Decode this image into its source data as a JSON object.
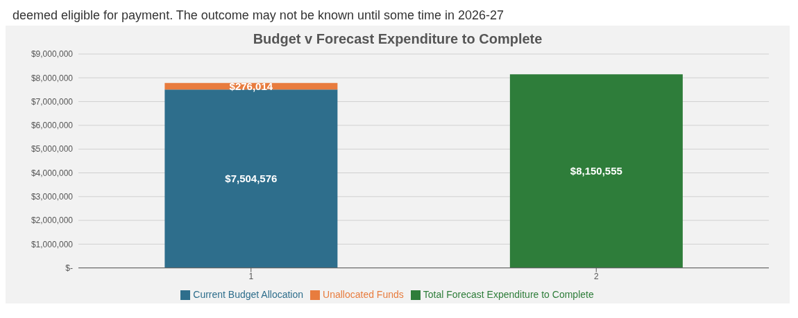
{
  "chart_data": {
    "type": "bar",
    "title": "Budget v Forecast Expenditure to Complete",
    "annotations": [
      "deemed eligible for payment. The outcome may not be known until some time in 2026-27"
    ],
    "categories": [
      "1",
      "2"
    ],
    "stacked": true,
    "series": [
      {
        "name": "Current Budget Allocation",
        "color": "#2e6e8c",
        "values": [
          7504576,
          null
        ],
        "value_labels": [
          "$7,504,576",
          null
        ]
      },
      {
        "name": "Unallocated Funds",
        "color": "#e87c3e",
        "values": [
          276014,
          null
        ],
        "value_labels": [
          "$276,014",
          null
        ]
      },
      {
        "name": "Total Forecast Expenditure to Complete",
        "color": "#2e7d3a",
        "values": [
          null,
          8150555
        ],
        "value_labels": [
          null,
          "$8,150,555"
        ]
      }
    ],
    "ylim": [
      0,
      9000000
    ],
    "yticks": [
      {
        "value": 0,
        "label": "$-"
      },
      {
        "value": 1000000,
        "label": "$1,000,000"
      },
      {
        "value": 2000000,
        "label": "$2,000,000"
      },
      {
        "value": 3000000,
        "label": "$3,000,000"
      },
      {
        "value": 4000000,
        "label": "$4,000,000"
      },
      {
        "value": 5000000,
        "label": "$5,000,000"
      },
      {
        "value": 6000000,
        "label": "$6,000,000"
      },
      {
        "value": 7000000,
        "label": "$7,000,000"
      },
      {
        "value": 8000000,
        "label": "$8,000,000"
      },
      {
        "value": 9000000,
        "label": "$9,000,000"
      }
    ],
    "grid": "y",
    "legend": "bottom"
  }
}
